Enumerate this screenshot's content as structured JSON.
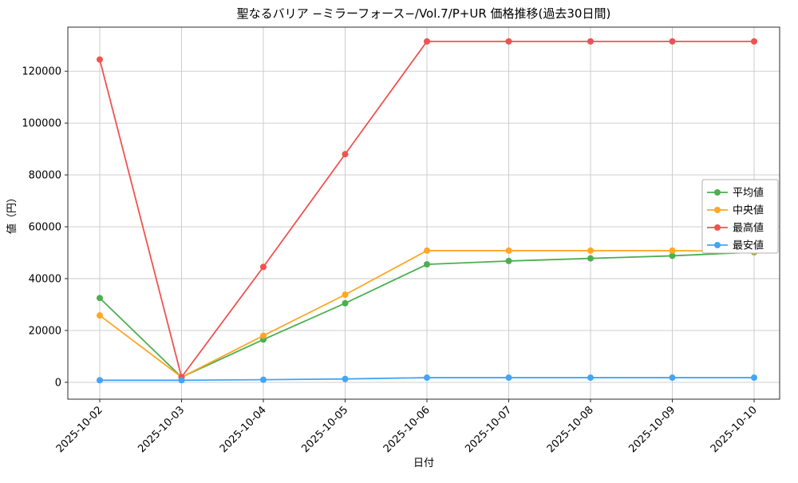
{
  "figure": {
    "background": "#ffffff"
  },
  "chart_data": {
    "type": "line",
    "title": "聖なるバリア −ミラーフォース−/Vol.7/P+UR 価格推移(過去30日間)",
    "xlabel": "日付",
    "ylabel": "値（円）",
    "x": [
      "2025-10-02",
      "2025-10-03",
      "2025-10-04",
      "2025-10-05",
      "2025-10-06",
      "2025-10-07",
      "2025-10-08",
      "2025-10-09",
      "2025-10-10"
    ],
    "series": [
      {
        "name": "平均値",
        "color": "#4caf50",
        "marker": "circle",
        "values": [
          32500,
          2000,
          16500,
          30500,
          45500,
          46800,
          47800,
          48800,
          50200
        ]
      },
      {
        "name": "中央値",
        "color": "#ffa726",
        "marker": "circle",
        "values": [
          25800,
          2000,
          18000,
          33800,
          50800,
          50800,
          50800,
          50800,
          50500
        ]
      },
      {
        "name": "最高値",
        "color": "#ef5350",
        "marker": "circle",
        "values": [
          124500,
          2000,
          44500,
          88000,
          131500,
          131500,
          131500,
          131500,
          131500
        ]
      },
      {
        "name": "最安値",
        "color": "#42a5f5",
        "marker": "circle",
        "values": [
          800,
          800,
          1000,
          1300,
          1800,
          1800,
          1800,
          1800,
          1800
        ]
      }
    ],
    "yticks": [
      0,
      20000,
      40000,
      60000,
      80000,
      100000,
      120000
    ],
    "ylim": [
      -6500,
      137000
    ],
    "grid": true,
    "grid_color": "#c9c9c9",
    "spine_color": "#2b2b2b",
    "legend_position": "center right",
    "legend_border_color": "#b0b0b0",
    "x_tick_rotation": 45
  }
}
